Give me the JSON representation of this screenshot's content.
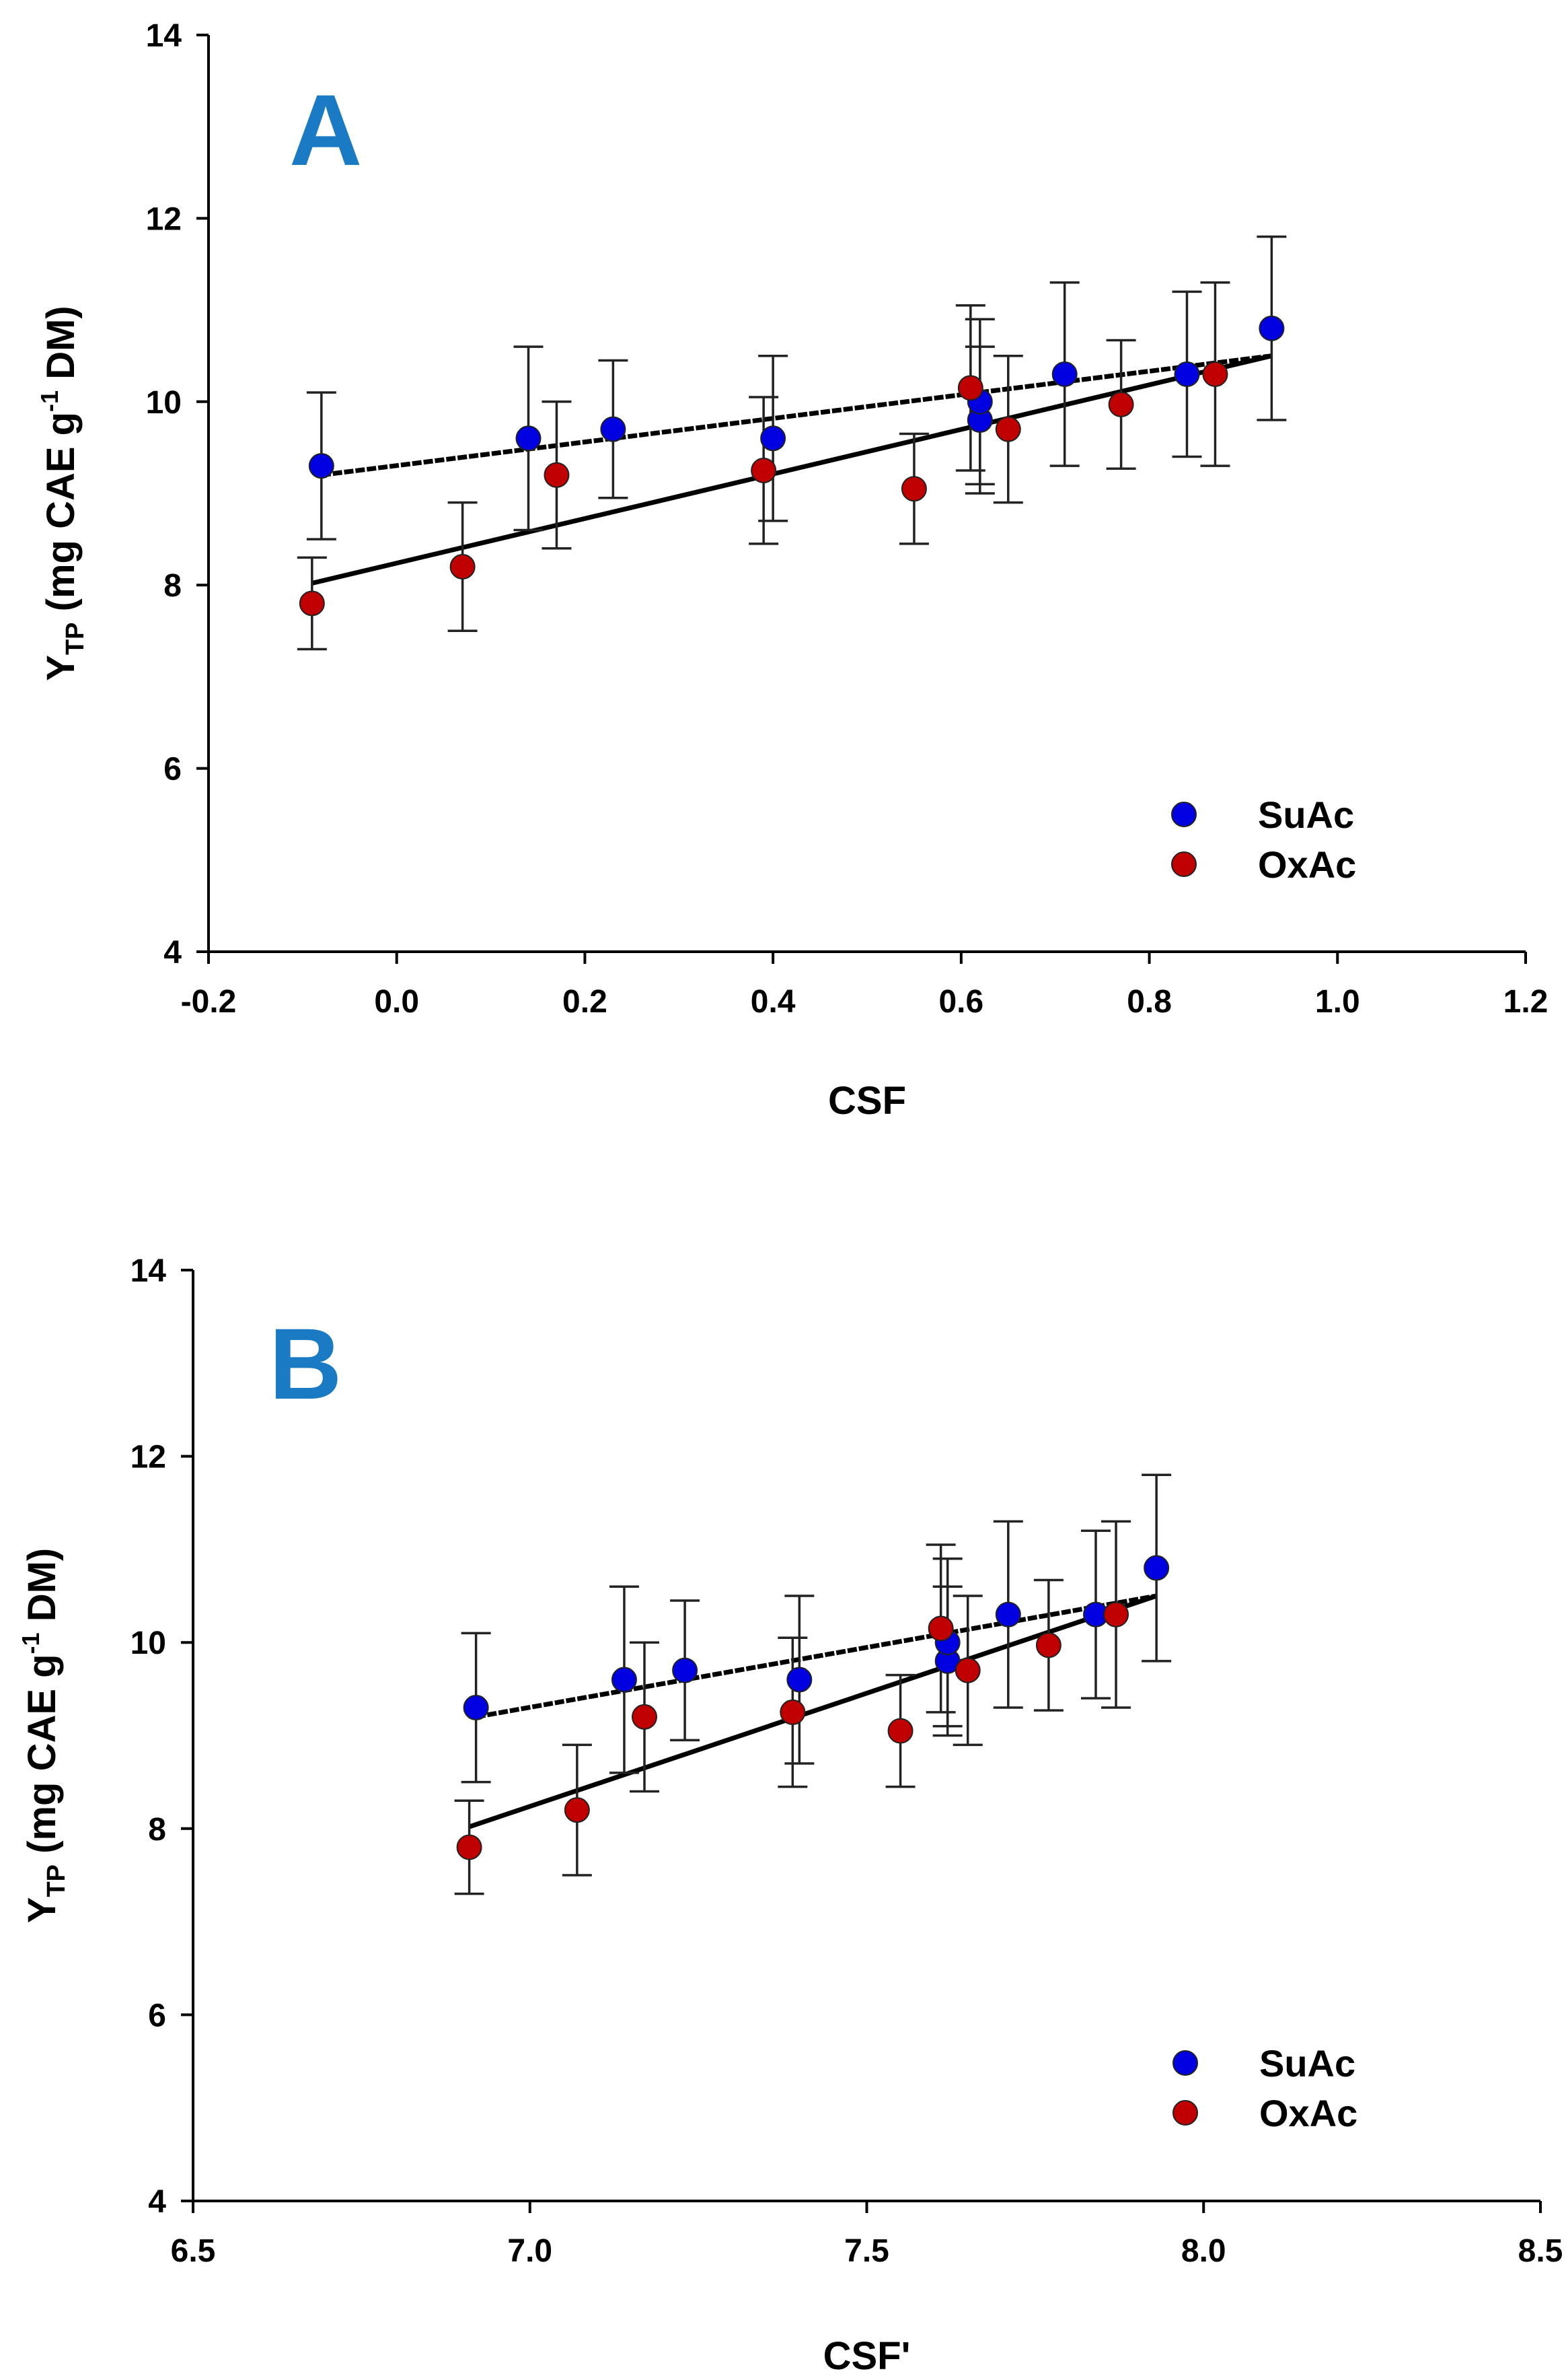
{
  "chart_data": [
    {
      "type": "scatter",
      "panel_label": "A",
      "xlabel": "CSF",
      "ylabel": {
        "main": "Y",
        "sub": "TP",
        "unit_prefix": " (mg CAE g",
        "unit_sup": "-1",
        "unit_suffix": " DM)"
      },
      "xlim": [
        -0.2,
        1.2
      ],
      "ylim": [
        4,
        14
      ],
      "xticks": [
        "-0.2",
        "0.0",
        "0.2",
        "0.4",
        "0.6",
        "0.8",
        "1.0",
        "1.2"
      ],
      "yticks": [
        "4",
        "6",
        "8",
        "10",
        "12",
        "14"
      ],
      "legend": {
        "placement": "bottom-right"
      },
      "series": [
        {
          "name": "SuAc",
          "color": "#0000e0",
          "points": [
            {
              "x": -0.08,
              "y": 9.3,
              "err": 0.8
            },
            {
              "x": 0.14,
              "y": 9.6,
              "err": 1.0
            },
            {
              "x": 0.23,
              "y": 9.7,
              "err": 0.75
            },
            {
              "x": 0.4,
              "y": 9.6,
              "err": 0.9
            },
            {
              "x": 0.62,
              "y": 9.8,
              "err": 0.8
            },
            {
              "x": 0.62,
              "y": 10.0,
              "err": 0.9
            },
            {
              "x": 0.71,
              "y": 10.3,
              "err": 1.0
            },
            {
              "x": 0.84,
              "y": 10.3,
              "err": 0.9
            },
            {
              "x": 0.93,
              "y": 10.8,
              "err": 1.0
            }
          ],
          "fit": {
            "x": [
              -0.08,
              0.93
            ],
            "y": [
              9.2,
              10.5
            ],
            "style": "dashed"
          }
        },
        {
          "name": "OxAc",
          "color": "#c00000",
          "points": [
            {
              "x": -0.09,
              "y": 7.8,
              "err": 0.5
            },
            {
              "x": 0.07,
              "y": 8.2,
              "err": 0.7
            },
            {
              "x": 0.17,
              "y": 9.2,
              "err": 0.8
            },
            {
              "x": 0.39,
              "y": 9.25,
              "err": 0.8
            },
            {
              "x": 0.55,
              "y": 9.05,
              "err": 0.6
            },
            {
              "x": 0.61,
              "y": 10.15,
              "err": 0.9
            },
            {
              "x": 0.65,
              "y": 9.7,
              "err": 0.8
            },
            {
              "x": 0.77,
              "y": 9.97,
              "err": 0.7
            },
            {
              "x": 0.87,
              "y": 10.3,
              "err": 1.0
            }
          ],
          "fit": {
            "x": [
              -0.09,
              0.93
            ],
            "y": [
              8.02,
              10.5
            ],
            "style": "solid"
          }
        }
      ]
    },
    {
      "type": "scatter",
      "panel_label": "B",
      "xlabel": "CSF'",
      "ylabel": {
        "main": "Y",
        "sub": "TP",
        "unit_prefix": " (mg CAE g",
        "unit_sup": "-1",
        "unit_suffix": " DM)"
      },
      "xlim": [
        6.5,
        8.5
      ],
      "ylim": [
        4,
        14
      ],
      "xticks": [
        "6.5",
        "7.0",
        "7.5",
        "8.0",
        "8.5"
      ],
      "yticks": [
        "4",
        "6",
        "8",
        "10",
        "12",
        "14"
      ],
      "legend": {
        "placement": "bottom-right"
      },
      "series": [
        {
          "name": "SuAc",
          "color": "#0000e0",
          "points": [
            {
              "x": 6.92,
              "y": 9.3,
              "err": 0.8
            },
            {
              "x": 7.14,
              "y": 9.6,
              "err": 1.0
            },
            {
              "x": 7.23,
              "y": 9.7,
              "err": 0.75
            },
            {
              "x": 7.4,
              "y": 9.6,
              "err": 0.9
            },
            {
              "x": 7.62,
              "y": 9.8,
              "err": 0.8
            },
            {
              "x": 7.62,
              "y": 10.0,
              "err": 0.9
            },
            {
              "x": 7.71,
              "y": 10.3,
              "err": 1.0
            },
            {
              "x": 7.84,
              "y": 10.3,
              "err": 0.9
            },
            {
              "x": 7.93,
              "y": 10.8,
              "err": 1.0
            }
          ],
          "fit": {
            "x": [
              6.92,
              7.93
            ],
            "y": [
              9.2,
              10.5
            ],
            "style": "dashed"
          }
        },
        {
          "name": "OxAc",
          "color": "#c00000",
          "points": [
            {
              "x": 6.91,
              "y": 7.8,
              "err": 0.5
            },
            {
              "x": 7.07,
              "y": 8.2,
              "err": 0.7
            },
            {
              "x": 7.17,
              "y": 9.2,
              "err": 0.8
            },
            {
              "x": 7.39,
              "y": 9.25,
              "err": 0.8
            },
            {
              "x": 7.55,
              "y": 9.05,
              "err": 0.6
            },
            {
              "x": 7.61,
              "y": 10.15,
              "err": 0.9
            },
            {
              "x": 7.65,
              "y": 9.7,
              "err": 0.8
            },
            {
              "x": 7.77,
              "y": 9.97,
              "err": 0.7
            },
            {
              "x": 7.87,
              "y": 10.3,
              "err": 1.0
            }
          ],
          "fit": {
            "x": [
              6.91,
              7.93
            ],
            "y": [
              8.02,
              10.5
            ],
            "style": "solid"
          }
        }
      ]
    }
  ]
}
